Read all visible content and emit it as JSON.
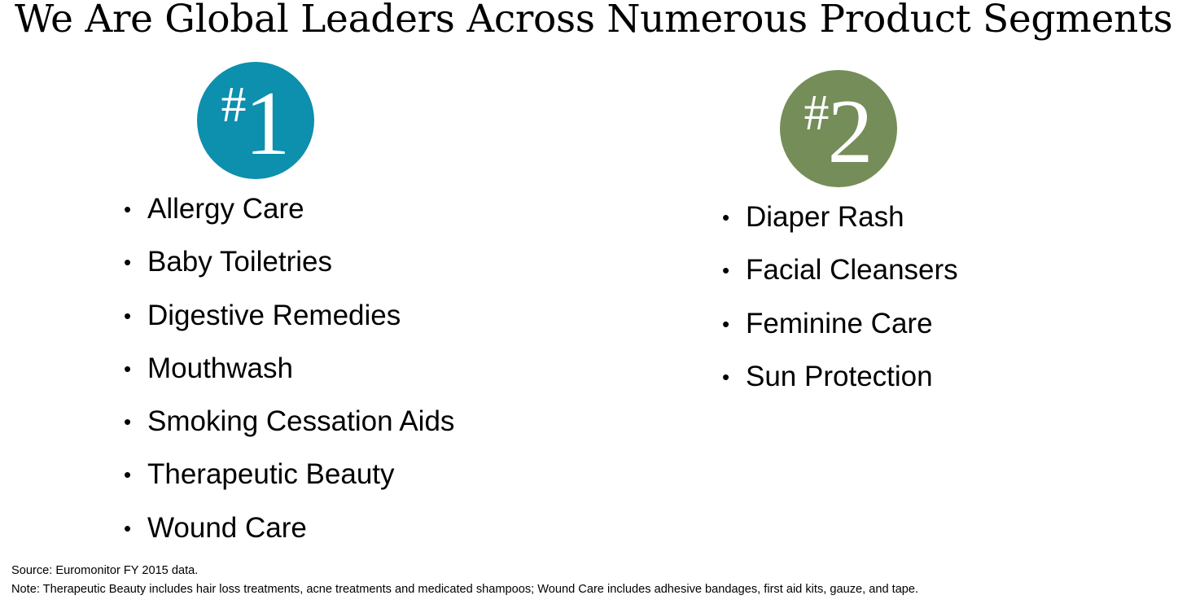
{
  "title": "We Are Global Leaders Across Numerous Product Segments",
  "groups": [
    {
      "rank_symbol": "#",
      "rank_number": "1",
      "color": "#0d8fae",
      "items": [
        "Allergy Care",
        "Baby Toiletries",
        "Digestive Remedies",
        "Mouthwash",
        "Smoking Cessation Aids",
        "Therapeutic Beauty",
        "Wound Care"
      ]
    },
    {
      "rank_symbol": "#",
      "rank_number": "2",
      "color": "#758d58",
      "items": [
        "Diaper Rash",
        "Facial Cleansers",
        "Feminine Care",
        "Sun Protection"
      ]
    }
  ],
  "bullet_char": "•",
  "footnotes": {
    "source": "Source: Euromonitor FY 2015 data.",
    "note": "Note: Therapeutic Beauty includes hair loss treatments, acne treatments and medicated shampoos; Wound Care includes adhesive bandages, first aid kits, gauze, and tape."
  }
}
